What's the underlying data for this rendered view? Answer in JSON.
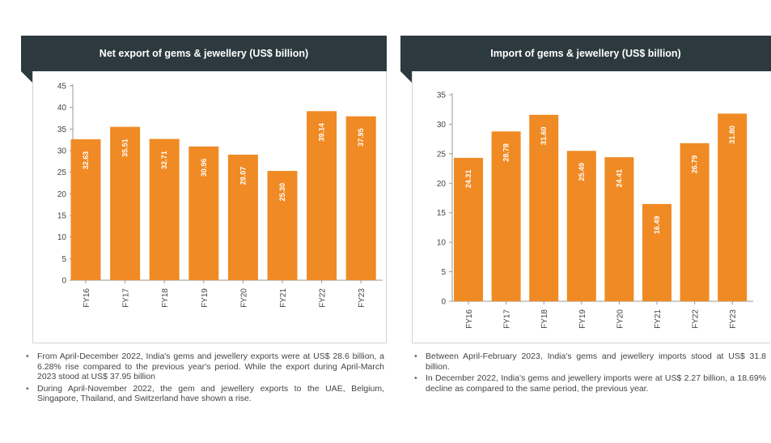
{
  "colors": {
    "bar": "#f08a24",
    "header": "#2c3a3f"
  },
  "chart_data": [
    {
      "type": "bar",
      "title": "Net export of gems & jewellery (US$ billion)",
      "categories": [
        "FY16",
        "FY17",
        "FY18",
        "FY19",
        "FY20",
        "FY21",
        "FY22",
        "FY23"
      ],
      "values": [
        32.63,
        35.51,
        32.71,
        30.96,
        29.07,
        25.3,
        39.14,
        37.95
      ],
      "value_labels": [
        "32.63",
        "35.51",
        "32.71",
        "30.96",
        "29.07",
        "25.30",
        "39.14",
        "37.95"
      ],
      "yticks": [
        0,
        5,
        10,
        15,
        20,
        25,
        30,
        35,
        40,
        45
      ],
      "ylim": [
        0,
        45
      ],
      "xlabel": "",
      "ylabel": "",
      "grid": false
    },
    {
      "type": "bar",
      "title": "Import of gems & jewellery (US$ billion)",
      "categories": [
        "FY16",
        "FY17",
        "FY18",
        "FY19",
        "FY20",
        "FY21",
        "FY22",
        "FY23"
      ],
      "values": [
        24.31,
        28.78,
        31.6,
        25.49,
        24.41,
        16.49,
        26.79,
        31.8
      ],
      "value_labels": [
        "24.31",
        "28.78",
        "31.60",
        "25.49",
        "24.41",
        "16.49",
        "26.79",
        "31.80"
      ],
      "yticks": [
        0,
        5,
        10,
        15,
        20,
        25,
        30,
        35
      ],
      "ylim": [
        0,
        35
      ],
      "xlabel": "",
      "ylabel": "",
      "grid": false
    }
  ],
  "notes": {
    "left": [
      "From April-December 2022, India's gems and jewellery exports were at US$ 28.6 billion, a 6.28% rise compared to the previous year's period. While the export during April-March 2023 stood at US$ 37.95 billion",
      "During April-November 2022, the gem and jewellery exports to the UAE, Belgium, Singapore, Thailand, and Switzerland have shown a rise."
    ],
    "right": [
      "Between April-February 2023, India's gems and jewellery imports stood at US$ 31.8 billion.",
      "In December 2022, India's gems and jewellery imports were at US$ 2.27 billion, a 18.69% decline as compared to the same period, the previous year."
    ]
  }
}
